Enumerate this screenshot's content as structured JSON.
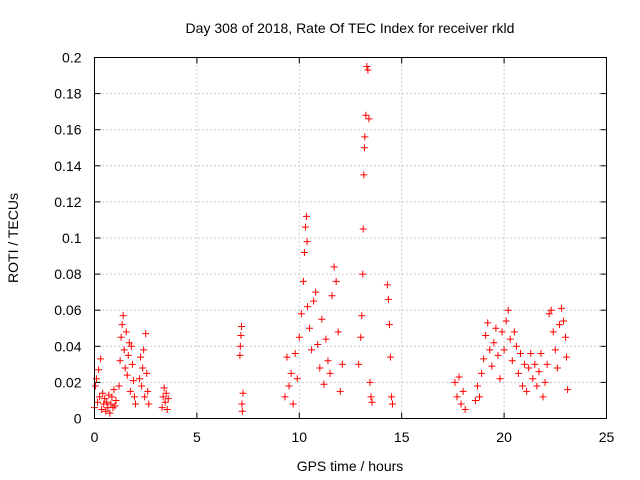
{
  "chart_data": {
    "type": "scatter",
    "title": "Day 308 of 2018, Rate Of TEC Index for receiver rkld",
    "xlabel": "GPS time / hours",
    "ylabel": "ROTI / TECUs",
    "xlim": [
      0,
      25
    ],
    "ylim": [
      0,
      0.2
    ],
    "grid": true,
    "marker": "plus",
    "color": "#ff0000",
    "x_ticks": [
      "0",
      "5",
      "10",
      "15",
      "20",
      "25"
    ],
    "y_ticks": [
      "0",
      "0.02",
      "0.04",
      "0.06",
      "0.08",
      "0.1",
      "0.12",
      "0.14",
      "0.16",
      "0.18",
      "0.2"
    ],
    "series": [
      {
        "name": "ROTI",
        "points": [
          [
            0.0,
            0.006
          ],
          [
            0.05,
            0.018
          ],
          [
            0.1,
            0.022
          ],
          [
            0.15,
            0.009
          ],
          [
            0.2,
            0.027
          ],
          [
            0.25,
            0.012
          ],
          [
            0.3,
            0.033
          ],
          [
            0.35,
            0.005
          ],
          [
            0.4,
            0.014
          ],
          [
            0.45,
            0.008
          ],
          [
            0.5,
            0.011
          ],
          [
            0.55,
            0.004
          ],
          [
            0.6,
            0.009
          ],
          [
            0.65,
            0.006
          ],
          [
            0.7,
            0.013
          ],
          [
            0.75,
            0.003
          ],
          [
            0.8,
            0.008
          ],
          [
            0.85,
            0.012
          ],
          [
            0.9,
            0.006
          ],
          [
            0.95,
            0.016
          ],
          [
            1.0,
            0.007
          ],
          [
            1.05,
            0.01
          ],
          [
            1.2,
            0.018
          ],
          [
            1.25,
            0.032
          ],
          [
            1.3,
            0.045
          ],
          [
            1.35,
            0.052
          ],
          [
            1.4,
            0.057
          ],
          [
            1.45,
            0.038
          ],
          [
            1.5,
            0.028
          ],
          [
            1.55,
            0.048
          ],
          [
            1.6,
            0.024
          ],
          [
            1.65,
            0.035
          ],
          [
            1.7,
            0.042
          ],
          [
            1.75,
            0.015
          ],
          [
            1.8,
            0.04
          ],
          [
            1.85,
            0.03
          ],
          [
            1.9,
            0.021
          ],
          [
            1.95,
            0.012
          ],
          [
            2.0,
            0.008
          ],
          [
            2.2,
            0.022
          ],
          [
            2.25,
            0.034
          ],
          [
            2.3,
            0.018
          ],
          [
            2.35,
            0.028
          ],
          [
            2.4,
            0.038
          ],
          [
            2.45,
            0.012
          ],
          [
            2.5,
            0.047
          ],
          [
            2.55,
            0.025
          ],
          [
            2.6,
            0.015
          ],
          [
            2.65,
            0.008
          ],
          [
            3.3,
            0.006
          ],
          [
            3.35,
            0.012
          ],
          [
            3.4,
            0.017
          ],
          [
            3.45,
            0.009
          ],
          [
            3.5,
            0.014
          ],
          [
            3.55,
            0.005
          ],
          [
            3.6,
            0.011
          ],
          [
            7.1,
            0.035
          ],
          [
            7.12,
            0.04
          ],
          [
            7.15,
            0.046
          ],
          [
            7.18,
            0.051
          ],
          [
            7.2,
            0.008
          ],
          [
            7.22,
            0.004
          ],
          [
            7.25,
            0.014
          ],
          [
            9.3,
            0.012
          ],
          [
            9.4,
            0.034
          ],
          [
            9.5,
            0.018
          ],
          [
            9.6,
            0.025
          ],
          [
            9.7,
            0.008
          ],
          [
            9.8,
            0.036
          ],
          [
            9.9,
            0.022
          ],
          [
            10.0,
            0.045
          ],
          [
            10.1,
            0.058
          ],
          [
            10.2,
            0.076
          ],
          [
            10.25,
            0.092
          ],
          [
            10.3,
            0.106
          ],
          [
            10.35,
            0.112
          ],
          [
            10.38,
            0.098
          ],
          [
            10.4,
            0.062
          ],
          [
            10.5,
            0.05
          ],
          [
            10.6,
            0.038
          ],
          [
            10.7,
            0.065
          ],
          [
            10.8,
            0.07
          ],
          [
            10.9,
            0.041
          ],
          [
            11.0,
            0.028
          ],
          [
            11.1,
            0.055
          ],
          [
            11.2,
            0.019
          ],
          [
            11.3,
            0.044
          ],
          [
            11.4,
            0.032
          ],
          [
            11.5,
            0.025
          ],
          [
            11.6,
            0.068
          ],
          [
            11.7,
            0.084
          ],
          [
            11.8,
            0.076
          ],
          [
            11.9,
            0.048
          ],
          [
            12.0,
            0.015
          ],
          [
            12.1,
            0.03
          ],
          [
            12.9,
            0.03
          ],
          [
            13.0,
            0.045
          ],
          [
            13.05,
            0.057
          ],
          [
            13.1,
            0.08
          ],
          [
            13.12,
            0.105
          ],
          [
            13.15,
            0.135
          ],
          [
            13.18,
            0.15
          ],
          [
            13.2,
            0.156
          ],
          [
            13.25,
            0.168
          ],
          [
            13.3,
            0.195
          ],
          [
            13.35,
            0.193
          ],
          [
            13.4,
            0.166
          ],
          [
            13.45,
            0.02
          ],
          [
            13.5,
            0.012
          ],
          [
            13.55,
            0.009
          ],
          [
            14.3,
            0.074
          ],
          [
            14.35,
            0.066
          ],
          [
            14.4,
            0.052
          ],
          [
            14.45,
            0.034
          ],
          [
            14.5,
            0.012
          ],
          [
            14.55,
            0.008
          ],
          [
            17.6,
            0.02
          ],
          [
            17.7,
            0.012
          ],
          [
            17.8,
            0.023
          ],
          [
            17.9,
            0.008
          ],
          [
            18.0,
            0.015
          ],
          [
            18.1,
            0.005
          ],
          [
            18.6,
            0.01
          ],
          [
            18.7,
            0.018
          ],
          [
            18.8,
            0.012
          ],
          [
            18.9,
            0.025
          ],
          [
            19.0,
            0.033
          ],
          [
            19.1,
            0.046
          ],
          [
            19.2,
            0.053
          ],
          [
            19.3,
            0.038
          ],
          [
            19.4,
            0.029
          ],
          [
            19.5,
            0.042
          ],
          [
            19.6,
            0.05
          ],
          [
            19.7,
            0.035
          ],
          [
            19.8,
            0.022
          ],
          [
            19.9,
            0.048
          ],
          [
            20.0,
            0.038
          ],
          [
            20.1,
            0.054
          ],
          [
            20.2,
            0.06
          ],
          [
            20.3,
            0.044
          ],
          [
            20.4,
            0.032
          ],
          [
            20.5,
            0.048
          ],
          [
            20.6,
            0.04
          ],
          [
            20.7,
            0.025
          ],
          [
            20.8,
            0.036
          ],
          [
            20.9,
            0.018
          ],
          [
            21.0,
            0.03
          ],
          [
            21.1,
            0.015
          ],
          [
            21.2,
            0.028
          ],
          [
            21.3,
            0.036
          ],
          [
            21.4,
            0.022
          ],
          [
            21.5,
            0.03
          ],
          [
            21.6,
            0.018
          ],
          [
            21.7,
            0.026
          ],
          [
            21.8,
            0.036
          ],
          [
            21.9,
            0.012
          ],
          [
            22.0,
            0.02
          ],
          [
            22.1,
            0.03
          ],
          [
            22.2,
            0.058
          ],
          [
            22.3,
            0.06
          ],
          [
            22.4,
            0.048
          ],
          [
            22.5,
            0.038
          ],
          [
            22.6,
            0.028
          ],
          [
            22.7,
            0.052
          ],
          [
            22.8,
            0.061
          ],
          [
            22.9,
            0.054
          ],
          [
            23.0,
            0.045
          ],
          [
            23.05,
            0.034
          ],
          [
            23.1,
            0.016
          ]
        ]
      }
    ]
  }
}
